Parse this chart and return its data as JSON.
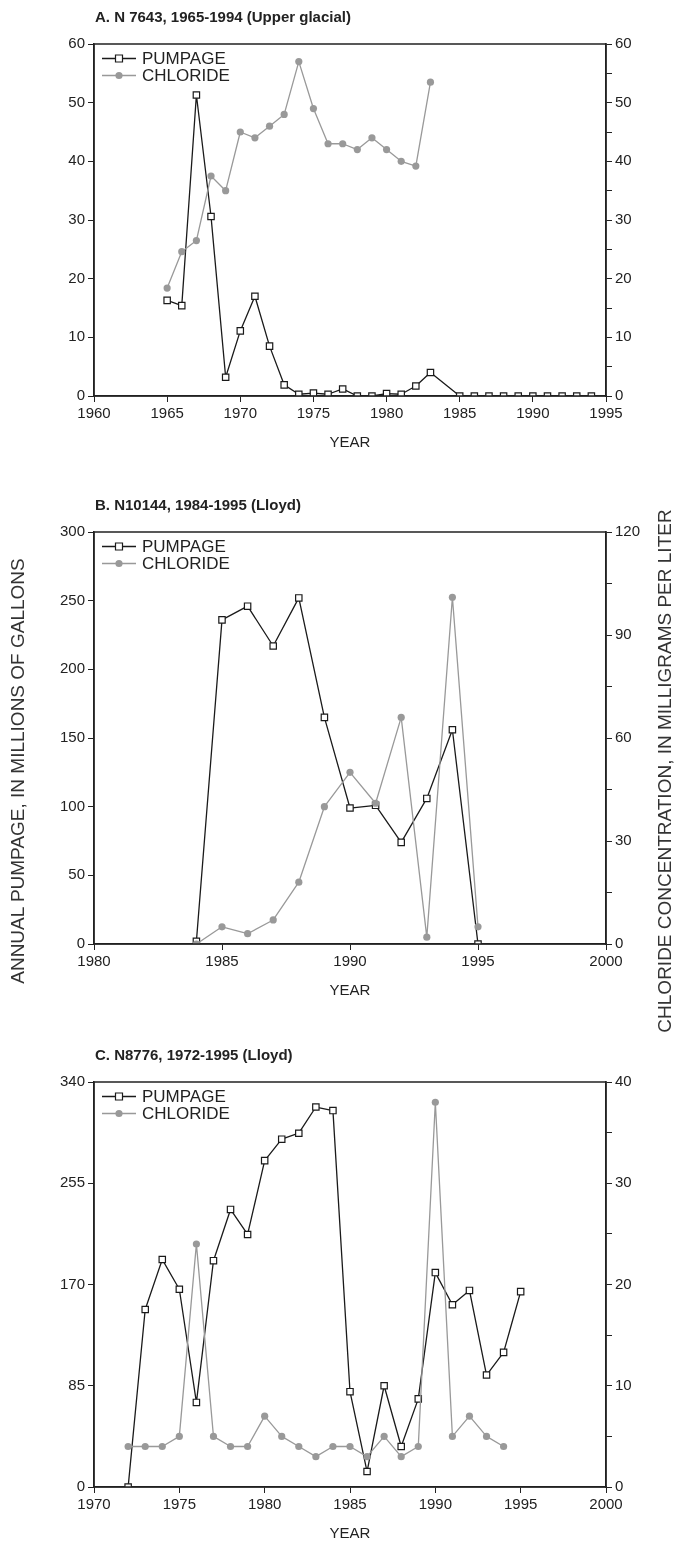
{
  "chart_data": [
    {
      "type": "line",
      "title": "A. N 7643, 1965-1994 (Upper glacial)",
      "xlabel": "YEAR",
      "legend": "top left",
      "xlim": [
        1960,
        1995
      ],
      "xticks": [
        1960,
        1965,
        1970,
        1975,
        1980,
        1985,
        1990,
        1995
      ],
      "ylim": [
        0,
        60
      ],
      "yticks": [
        0,
        10,
        20,
        30,
        40,
        50,
        60
      ],
      "y2lim": [
        0,
        60
      ],
      "y2ticks": [
        0,
        {
          "value": 5,
          "label": null
        },
        10,
        {
          "value": 15,
          "label": null
        },
        20,
        {
          "value": 25,
          "label": null
        },
        30,
        {
          "value": 35,
          "label": null
        },
        40,
        {
          "value": 45,
          "label": null
        },
        50,
        {
          "value": 55,
          "label": null
        },
        60
      ],
      "grid": false,
      "series": [
        {
          "name": "PUMPAGE",
          "color": "#1a1a1a",
          "marker": "square",
          "x": [
            1965,
            1966,
            1967,
            1968,
            1969,
            1970,
            1971,
            1972,
            1973,
            1974,
            1975,
            1976,
            1977,
            1978,
            1979,
            1980,
            1981,
            1982,
            1983,
            1985,
            1986,
            1987,
            1988,
            1989,
            1990,
            1991,
            1992,
            1993,
            1994
          ],
          "values": [
            16.3,
            15.4,
            51.3,
            30.6,
            3.2,
            11.1,
            17,
            8.5,
            1.9,
            0.3,
            0.5,
            0.3,
            1.2,
            0,
            0,
            0.4,
            0.3,
            1.7,
            4,
            0,
            0,
            0,
            0,
            0,
            0,
            0,
            0,
            0,
            0
          ]
        },
        {
          "name": "CHLORIDE",
          "color": "#999999",
          "marker": "circle",
          "axis": "y2",
          "x": [
            1965,
            1966,
            1967,
            1968,
            1969,
            1970,
            1971,
            1972,
            1973,
            1974,
            1975,
            1976,
            1977,
            1978,
            1979,
            1980,
            1981,
            1982,
            1983
          ],
          "values": [
            18.4,
            24.6,
            26.5,
            37.5,
            35,
            45,
            44,
            46,
            48,
            57,
            49,
            43,
            43,
            42,
            44,
            42,
            40,
            39.2,
            53.5
          ]
        }
      ]
    },
    {
      "type": "line",
      "title": "B. N10144, 1984-1995 (Lloyd)",
      "xlabel": "YEAR",
      "ylabel": "ANNUAL PUMPAGE, IN MILLIONS OF GALLONS",
      "y2label": "CHLORIDE CONCENTRATION, IN MILLIGRAMS PER LITER",
      "legend": "top left",
      "xlim": [
        1980,
        2000
      ],
      "xticks": [
        1980,
        1985,
        1990,
        1995,
        2000
      ],
      "ylim": [
        0,
        300
      ],
      "yticks": [
        0,
        50,
        100,
        150,
        200,
        250,
        300
      ],
      "y2lim": [
        0,
        120
      ],
      "y2ticks": [
        0,
        {
          "value": 15,
          "label": null
        },
        30,
        {
          "value": 45,
          "label": null
        },
        60,
        {
          "value": 75,
          "label": null
        },
        90,
        {
          "value": 105,
          "label": null
        },
        120
      ],
      "grid": false,
      "series": [
        {
          "name": "PUMPAGE",
          "color": "#1a1a1a",
          "marker": "square",
          "x": [
            1984,
            1985,
            1986,
            1987,
            1988,
            1989,
            1990,
            1991,
            1992,
            1993,
            1994,
            1995
          ],
          "values": [
            2,
            236,
            246,
            217,
            252,
            165,
            99,
            101,
            74,
            106,
            156,
            0
          ]
        },
        {
          "name": "CHLORIDE",
          "color": "#999999",
          "marker": "circle",
          "axis": "y2",
          "x": [
            1984,
            1985,
            1986,
            1987,
            1988,
            1989,
            1990,
            1991,
            1992,
            1993,
            1994,
            1995
          ],
          "values": [
            0,
            5,
            3,
            7,
            18,
            40,
            50,
            41,
            66,
            2,
            101,
            5
          ]
        }
      ]
    },
    {
      "type": "line",
      "title": "C. N8776, 1972-1995 (Lloyd)",
      "xlabel": "YEAR",
      "legend": "top left",
      "xlim": [
        1970,
        2000
      ],
      "xticks": [
        1970,
        1975,
        1980,
        1985,
        1990,
        1995,
        2000
      ],
      "ylim": [
        0,
        340
      ],
      "yticks": [
        0,
        85,
        170,
        255,
        340
      ],
      "y2lim": [
        0,
        40
      ],
      "y2ticks": [
        0,
        {
          "value": 5,
          "label": null
        },
        10,
        {
          "value": 15,
          "label": null
        },
        20,
        {
          "value": 25,
          "label": null
        },
        30,
        {
          "value": 35,
          "label": null
        },
        40
      ],
      "grid": false,
      "series": [
        {
          "name": "PUMPAGE",
          "color": "#1a1a1a",
          "marker": "square",
          "x": [
            1972,
            1973,
            1974,
            1975,
            1976,
            1977,
            1978,
            1979,
            1980,
            1981,
            1982,
            1983,
            1984,
            1985,
            1986,
            1987,
            1988,
            1989,
            1990,
            1991,
            1992,
            1993,
            1994,
            1995
          ],
          "values": [
            0,
            149,
            191,
            166,
            71,
            190,
            233,
            212,
            274,
            292,
            297,
            319,
            316,
            80,
            13,
            85,
            34,
            74,
            180,
            153,
            165,
            94,
            113,
            164
          ]
        },
        {
          "name": "CHLORIDE",
          "color": "#999999",
          "marker": "circle",
          "axis": "y2",
          "x": [
            1972,
            1973,
            1974,
            1975,
            1976,
            1977,
            1978,
            1979,
            1980,
            1981,
            1982,
            1983,
            1984,
            1985,
            1986,
            1987,
            1988,
            1989,
            1990,
            1991,
            1992,
            1993,
            1994
          ],
          "values": [
            4,
            4,
            4,
            5,
            24,
            5,
            4,
            4,
            7,
            5,
            4,
            3,
            4,
            4,
            3,
            5,
            3,
            4,
            38,
            5,
            7,
            5,
            4
          ]
        }
      ]
    }
  ]
}
